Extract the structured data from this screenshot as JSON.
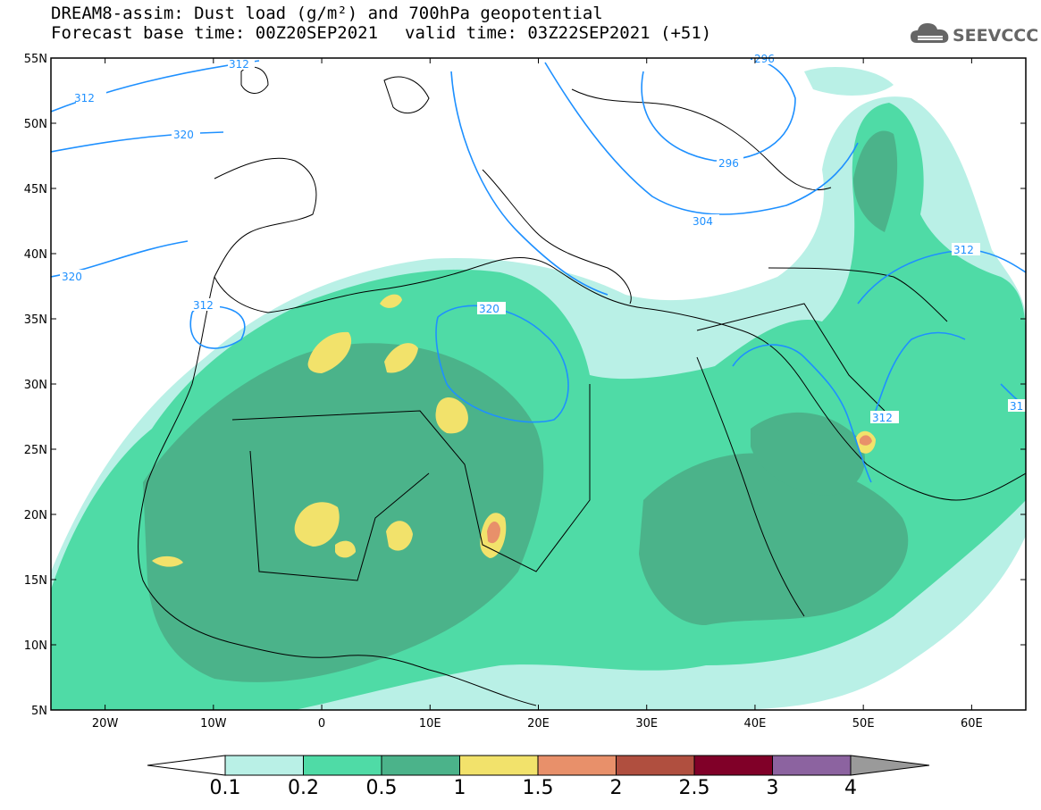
{
  "title": {
    "line1": "DREAM8-assim: Dust load (g/m²) and 700hPa geopotential",
    "base_time": "Forecast base time: 00Z20SEP2021",
    "valid_time": "valid time: 03Z22SEP2021 (+51)"
  },
  "logo": {
    "text": "SEEVCCC",
    "icon": "cloud-icon",
    "color": "#666666"
  },
  "map": {
    "lon_range": [
      -25,
      65
    ],
    "lat_range": [
      5,
      55
    ],
    "lat_labels": [
      "55N",
      "50N",
      "45N",
      "40N",
      "35N",
      "30N",
      "25N",
      "20N",
      "15N",
      "10N",
      "5N"
    ],
    "lon_labels": [
      "20W",
      "10W",
      "0",
      "10E",
      "20E",
      "30E",
      "40E",
      "50E",
      "60E"
    ],
    "contour_color": "#1e90ff",
    "contour_labels": [
      "312",
      "312",
      "320",
      "320",
      "312",
      "320",
      "304",
      "296",
      "296",
      "312",
      "312",
      "31"
    ]
  },
  "colorbar": {
    "labels": [
      "0.1",
      "0.2",
      "0.5",
      "1",
      "1.5",
      "2",
      "2.5",
      "3",
      "4"
    ],
    "colors": [
      "#ffffff",
      "#b9f0e6",
      "#4fdba6",
      "#4bb38a",
      "#f2e26b",
      "#e8906a",
      "#b04f3f",
      "#800028",
      "#8c63a0",
      "#9a9a9a"
    ]
  }
}
